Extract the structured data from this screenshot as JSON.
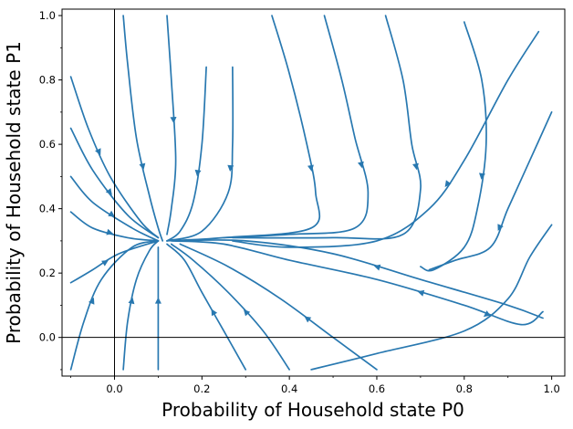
{
  "chart_data": {
    "type": "streamplot",
    "xlabel": "Probability of Household state P0",
    "ylabel": "Probability of Household state P1",
    "xlim": [
      -0.12,
      1.03
    ],
    "ylim": [
      -0.12,
      1.02
    ],
    "x_ticks": [
      0.0,
      0.2,
      0.4,
      0.6,
      0.8,
      1.0
    ],
    "y_ticks": [
      0.0,
      0.2,
      0.4,
      0.6,
      0.8,
      1.0
    ],
    "x_tick_labels": [
      "0.0",
      "0.2",
      "0.4",
      "0.6",
      "0.8",
      "1.0"
    ],
    "y_tick_labels": [
      "0.0",
      "0.2",
      "0.4",
      "0.6",
      "0.8",
      "1.0"
    ],
    "reference_lines": {
      "x": 0.0,
      "y": 0.0
    },
    "grid": false,
    "line_color": "#2878b0",
    "equilibrium_point": [
      0.11,
      0.3
    ],
    "streamlines": [
      [
        [
          0.02,
          1.0
        ],
        [
          0.03,
          0.85
        ],
        [
          0.05,
          0.62
        ],
        [
          0.08,
          0.44
        ],
        [
          0.1,
          0.34
        ],
        [
          0.11,
          0.3
        ]
      ],
      [
        [
          0.12,
          1.0
        ],
        [
          0.13,
          0.8
        ],
        [
          0.14,
          0.55
        ],
        [
          0.13,
          0.4
        ],
        [
          0.12,
          0.32
        ]
      ],
      [
        [
          0.21,
          0.84
        ],
        [
          0.2,
          0.6
        ],
        [
          0.18,
          0.42
        ],
        [
          0.15,
          0.33
        ],
        [
          0.12,
          0.3
        ]
      ],
      [
        [
          0.27,
          0.84
        ],
        [
          0.27,
          0.6
        ],
        [
          0.26,
          0.45
        ],
        [
          0.2,
          0.33
        ],
        [
          0.12,
          0.3
        ]
      ],
      [
        [
          -0.1,
          0.81
        ],
        [
          -0.06,
          0.65
        ],
        [
          -0.01,
          0.5
        ],
        [
          0.06,
          0.36
        ],
        [
          0.1,
          0.31
        ]
      ],
      [
        [
          -0.1,
          0.65
        ],
        [
          -0.05,
          0.52
        ],
        [
          0.03,
          0.38
        ],
        [
          0.1,
          0.31
        ]
      ],
      [
        [
          -0.1,
          0.5
        ],
        [
          -0.05,
          0.42
        ],
        [
          0.04,
          0.34
        ],
        [
          0.1,
          0.3
        ]
      ],
      [
        [
          -0.1,
          0.39
        ],
        [
          -0.05,
          0.34
        ],
        [
          0.03,
          0.31
        ],
        [
          0.1,
          0.3
        ]
      ],
      [
        [
          -0.1,
          0.17
        ],
        [
          -0.05,
          0.21
        ],
        [
          0.01,
          0.26
        ],
        [
          0.1,
          0.3
        ]
      ],
      [
        [
          -0.1,
          -0.1
        ],
        [
          -0.07,
          0.05
        ],
        [
          -0.03,
          0.18
        ],
        [
          0.04,
          0.28
        ],
        [
          0.1,
          0.3
        ]
      ],
      [
        [
          0.36,
          1.0
        ],
        [
          0.4,
          0.82
        ],
        [
          0.44,
          0.6
        ],
        [
          0.46,
          0.45
        ],
        [
          0.45,
          0.34
        ],
        [
          0.25,
          0.31
        ],
        [
          0.12,
          0.3
        ]
      ],
      [
        [
          0.48,
          1.0
        ],
        [
          0.52,
          0.8
        ],
        [
          0.55,
          0.62
        ],
        [
          0.58,
          0.45
        ],
        [
          0.55,
          0.34
        ],
        [
          0.4,
          0.32
        ],
        [
          0.25,
          0.31
        ]
      ],
      [
        [
          0.62,
          1.0
        ],
        [
          0.66,
          0.8
        ],
        [
          0.68,
          0.6
        ],
        [
          0.7,
          0.46
        ],
        [
          0.66,
          0.32
        ],
        [
          0.5,
          0.31
        ],
        [
          0.27,
          0.31
        ]
      ],
      [
        [
          0.97,
          0.95
        ],
        [
          0.9,
          0.8
        ],
        [
          0.8,
          0.55
        ],
        [
          0.72,
          0.4
        ],
        [
          0.6,
          0.3
        ],
        [
          0.4,
          0.28
        ],
        [
          0.27,
          0.3
        ]
      ],
      [
        [
          0.8,
          0.98
        ],
        [
          0.84,
          0.8
        ],
        [
          0.85,
          0.6
        ],
        [
          0.83,
          0.4
        ],
        [
          0.8,
          0.28
        ],
        [
          0.73,
          0.21
        ],
        [
          0.7,
          0.22
        ]
      ],
      [
        [
          1.0,
          0.7
        ],
        [
          0.95,
          0.55
        ],
        [
          0.9,
          0.4
        ],
        [
          0.86,
          0.28
        ],
        [
          0.78,
          0.24
        ],
        [
          0.72,
          0.21
        ]
      ],
      [
        [
          1.0,
          0.35
        ],
        [
          0.95,
          0.25
        ],
        [
          0.9,
          0.12
        ],
        [
          0.8,
          0.02
        ],
        [
          0.6,
          -0.05
        ],
        [
          0.45,
          -0.1
        ]
      ],
      [
        [
          0.98,
          0.08
        ],
        [
          0.93,
          0.04
        ],
        [
          0.8,
          0.1
        ],
        [
          0.6,
          0.18
        ],
        [
          0.4,
          0.24
        ],
        [
          0.25,
          0.29
        ],
        [
          0.13,
          0.3
        ]
      ],
      [
        [
          0.98,
          0.06
        ],
        [
          0.9,
          0.1
        ],
        [
          0.7,
          0.18
        ],
        [
          0.5,
          0.26
        ],
        [
          0.3,
          0.3
        ],
        [
          0.14,
          0.3
        ]
      ],
      [
        [
          0.3,
          -0.1
        ],
        [
          0.25,
          0.02
        ],
        [
          0.2,
          0.14
        ],
        [
          0.16,
          0.24
        ],
        [
          0.12,
          0.29
        ]
      ],
      [
        [
          0.02,
          -0.1
        ],
        [
          0.03,
          0.05
        ],
        [
          0.05,
          0.18
        ],
        [
          0.08,
          0.27
        ],
        [
          0.1,
          0.3
        ]
      ],
      [
        [
          0.1,
          -0.1
        ],
        [
          0.1,
          0.05
        ],
        [
          0.1,
          0.18
        ],
        [
          0.1,
          0.28
        ]
      ],
      [
        [
          0.4,
          -0.1
        ],
        [
          0.34,
          0.02
        ],
        [
          0.26,
          0.14
        ],
        [
          0.18,
          0.24
        ],
        [
          0.13,
          0.29
        ]
      ],
      [
        [
          0.6,
          -0.1
        ],
        [
          0.5,
          0.0
        ],
        [
          0.38,
          0.12
        ],
        [
          0.26,
          0.22
        ],
        [
          0.15,
          0.29
        ]
      ]
    ]
  }
}
